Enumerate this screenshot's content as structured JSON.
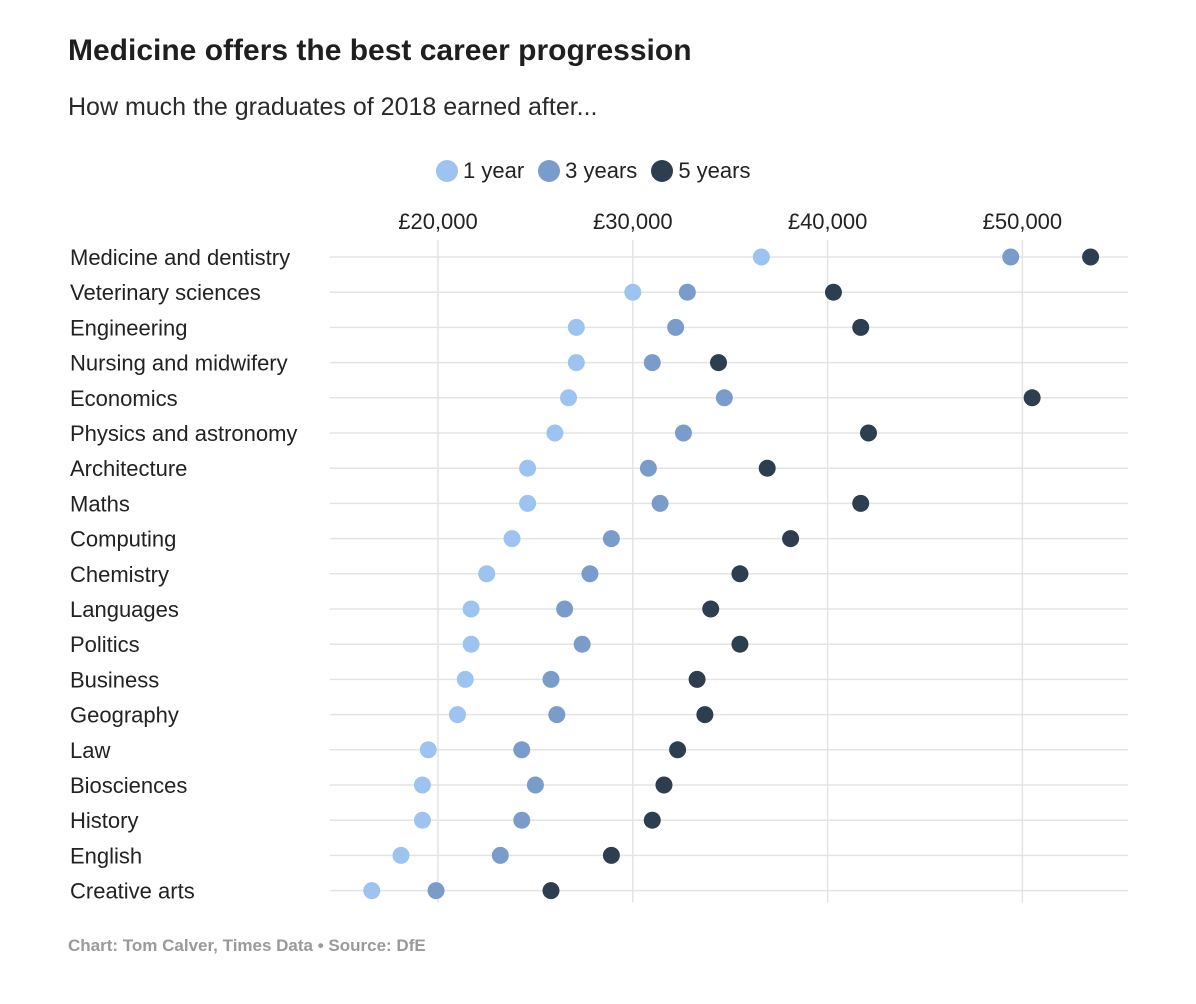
{
  "header": {
    "title": "Medicine offers the best career progression",
    "subtitle": "How much the graduates of 2018 earned after..."
  },
  "footer": {
    "credit": "Chart: Tom Calver, Times Data • Source: DfE"
  },
  "colors": {
    "one_year": "#9dc3f0",
    "three_years": "#7a9ccb",
    "five_years": "#2c3e50",
    "gridline": "#e4e4e4"
  },
  "chart_data": {
    "type": "scatter",
    "title": "Medicine offers the best career progression",
    "subtitle": "How much the graduates of 2018 earned after...",
    "xlabel": "",
    "ylabel": "",
    "xlim": [
      15000,
      55500
    ],
    "x_ticks": [
      20000,
      30000,
      40000,
      50000
    ],
    "x_tick_labels": [
      "£20,000",
      "£30,000",
      "£40,000",
      "£50,000"
    ],
    "grid": true,
    "legend_position": "top",
    "categories": [
      "Medicine and dentistry",
      "Veterinary sciences",
      "Engineering",
      "Nursing and midwifery",
      "Economics",
      "Physics and astronomy",
      "Architecture",
      "Maths",
      "Computing",
      "Chemistry",
      "Languages",
      "Politics",
      "Business",
      "Geography",
      "Law",
      "Biosciences",
      "History",
      "English",
      "Creative arts"
    ],
    "series": [
      {
        "name": "1 year",
        "color": "#9dc3f0",
        "values": [
          36600,
          30000,
          27100,
          27100,
          26700,
          26000,
          24600,
          24600,
          23800,
          22500,
          21700,
          21700,
          21400,
          21000,
          19500,
          19200,
          19200,
          18100,
          16600
        ]
      },
      {
        "name": "3 years",
        "color": "#7a9ccb",
        "values": [
          49400,
          32800,
          32200,
          31000,
          34700,
          32600,
          30800,
          31400,
          28900,
          27800,
          26500,
          27400,
          25800,
          26100,
          24300,
          25000,
          24300,
          23200,
          19900
        ]
      },
      {
        "name": "5 years",
        "color": "#2c3e50",
        "values": [
          53500,
          40300,
          41700,
          34400,
          50500,
          42100,
          36900,
          41700,
          38100,
          35500,
          34000,
          35500,
          33300,
          33700,
          32300,
          31600,
          31000,
          28900,
          25800
        ]
      }
    ]
  }
}
